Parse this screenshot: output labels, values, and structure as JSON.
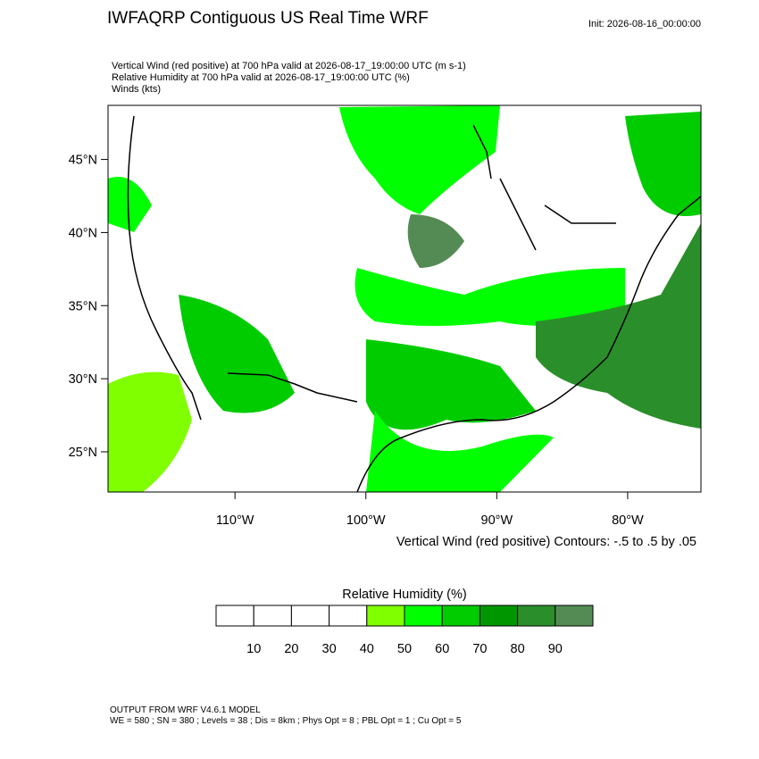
{
  "header": {
    "title": "IWFAQRP Contiguous US Real Time WRF",
    "init": "Init: 2026-08-16_00:00:00",
    "lines": [
      "Vertical Wind (red positive) at 700 hPa valid at 2026-08-17_19:00:00 UTC   (m s-1)",
      "Relative Humidity at 700 hPa valid at 2026-08-17_19:00:00 UTC   (%)",
      "Winds   (kts)"
    ]
  },
  "map": {
    "lonlim": [
      -119.7,
      -74.4
    ],
    "latlim": [
      22.25,
      48.7
    ],
    "lat_ticks": [
      {
        "value": 45,
        "label": "45°N"
      },
      {
        "value": 40,
        "label": "40°N"
      },
      {
        "value": 35,
        "label": "35°N"
      },
      {
        "value": 30,
        "label": "30°N"
      },
      {
        "value": 25,
        "label": "25°N"
      }
    ],
    "lon_ticks": [
      {
        "value": -110,
        "label": "110°W"
      },
      {
        "value": -100,
        "label": "100°W"
      },
      {
        "value": -90,
        "label": "90°W"
      },
      {
        "value": -80,
        "label": "80°W"
      }
    ],
    "contour_note": "Vertical Wind (red positive) Contours: -.5 to .5 by .05"
  },
  "colorbar": {
    "title": "Relative Humidity  (%)",
    "levels": [
      10,
      20,
      30,
      40,
      50,
      60,
      70,
      80,
      90
    ],
    "colors": [
      "#ffffff",
      "#ffffff",
      "#ffffff",
      "#ffffff",
      "#80ff00",
      "#00ff00",
      "#00cc00",
      "#009600",
      "#2a8f2a",
      "#548b54"
    ]
  },
  "footer": {
    "lines": [
      "OUTPUT FROM WRF V4.6.1 MODEL",
      "WE = 580 ; SN = 380 ; Levels = 38 ; Dis = 8km ; Phys Opt = 8 ; PBL Opt = 1 ; Cu Opt = 5"
    ]
  }
}
